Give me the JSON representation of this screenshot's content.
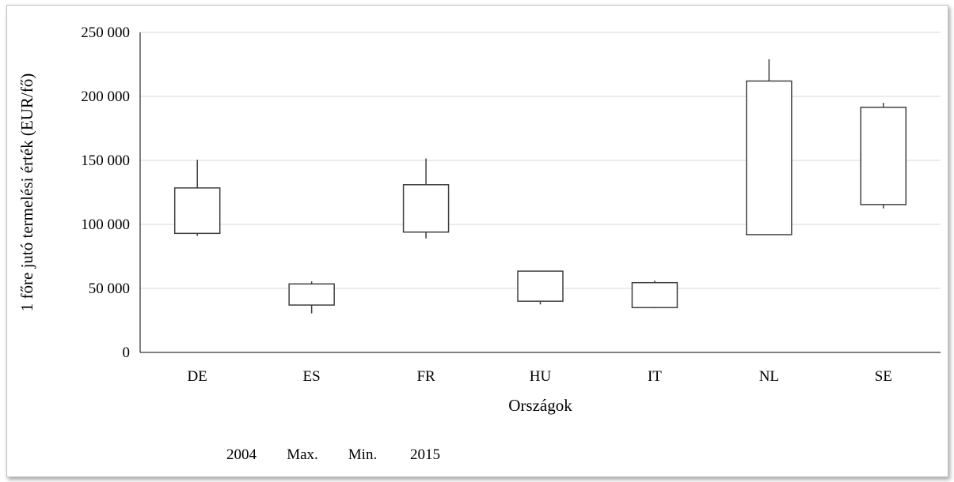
{
  "chart_data": {
    "type": "candlestick",
    "categories": [
      "DE",
      "ES",
      "FR",
      "HU",
      "IT",
      "NL",
      "SE"
    ],
    "series": [
      {
        "name": "2004",
        "values": [
          93000,
          53500,
          94000,
          63500,
          54500,
          92000,
          115500
        ]
      },
      {
        "name": "Max.",
        "values": [
          150500,
          55500,
          151500,
          63500,
          56000,
          229000,
          195000
        ]
      },
      {
        "name": "Min.",
        "values": [
          91000,
          30500,
          89000,
          37500,
          34500,
          92000,
          112500
        ]
      },
      {
        "name": "2015",
        "values": [
          128500,
          37000,
          131000,
          40000,
          35000,
          212000,
          191500
        ]
      }
    ],
    "xlabel": "Országok",
    "ylabel": "1 főre jutó termelési érték (EUR/fő)",
    "ylim": [
      0,
      250000
    ],
    "yticks": [
      "0",
      "50 000",
      "100 000",
      "150 000",
      "200 000",
      "250 000"
    ],
    "grid": true,
    "legend_position": "bottom",
    "colors": {
      "box_stroke": "#404040",
      "box_fill": "#ffffff",
      "grid": "#d9d9d9",
      "axis": "#000000"
    }
  }
}
